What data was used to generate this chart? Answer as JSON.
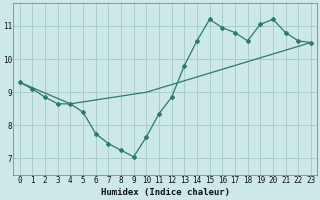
{
  "xlabel": "Humidex (Indice chaleur)",
  "background_color": "#cce8e8",
  "grid_color": "#aacccc",
  "line_color": "#2d7a6a",
  "xlim": [
    -0.5,
    23.5
  ],
  "ylim": [
    6.5,
    11.7
  ],
  "xticks": [
    0,
    1,
    2,
    3,
    4,
    5,
    6,
    7,
    8,
    9,
    10,
    11,
    12,
    13,
    14,
    15,
    16,
    17,
    18,
    19,
    20,
    21,
    22,
    23
  ],
  "yticks": [
    7,
    8,
    9,
    10,
    11
  ],
  "series1_x": [
    0,
    1,
    2,
    3,
    4,
    5,
    6,
    7,
    8,
    9,
    10,
    11,
    12,
    13,
    14,
    15,
    16,
    17,
    18,
    19,
    20,
    21,
    22,
    23
  ],
  "series1_y": [
    9.3,
    9.1,
    8.85,
    8.65,
    8.65,
    8.4,
    7.75,
    7.45,
    7.25,
    7.05,
    7.65,
    8.35,
    8.85,
    9.8,
    10.55,
    11.2,
    10.95,
    10.8,
    10.55,
    11.05,
    11.2,
    10.8,
    10.55,
    10.5
  ],
  "series2_x": [
    0,
    4,
    10,
    23
  ],
  "series2_y": [
    9.3,
    8.65,
    9.0,
    10.5
  ]
}
